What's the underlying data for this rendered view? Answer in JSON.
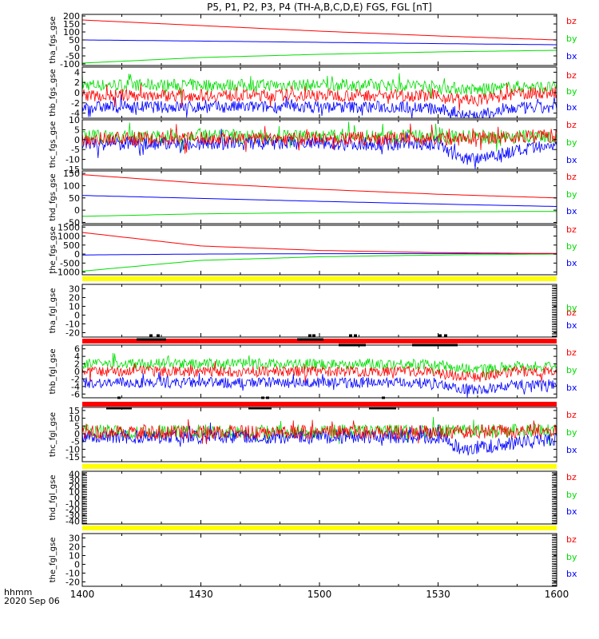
{
  "title": "P5, P1, P2, P3, P4 (TH-A,B,C,D,E) FGS, FGL [nT]",
  "xaxis": {
    "ticks": [
      "1400",
      "1430",
      "1500",
      "1530",
      "1600"
    ],
    "tick_minutes": [
      0,
      30,
      60,
      90,
      120
    ],
    "unit_label": "hhmm",
    "date_label": "2020 Sep 06"
  },
  "colors": {
    "bz": "#ff0000",
    "by": "#00dd00",
    "bx": "#0000ff",
    "bar_yellow": "#ffff00",
    "bar_red": "#ff0000"
  },
  "chart_data": [
    {
      "type": "line",
      "panel": 1,
      "ylabel": "tha_fgs_gse",
      "ylim": [
        -110,
        210
      ],
      "yticks": [
        "200",
        "150",
        "100",
        "50",
        "0",
        "-50",
        "-100"
      ],
      "ytick_values": [
        200,
        150,
        100,
        50,
        0,
        -50,
        -100
      ],
      "legend": [
        "bz",
        "by",
        "bx"
      ],
      "series": [
        {
          "name": "bx",
          "x": [
            0,
            30,
            60,
            90,
            120
          ],
          "y": [
            50,
            43,
            35,
            27,
            20
          ]
        },
        {
          "name": "by",
          "x": [
            0,
            30,
            60,
            90,
            120
          ],
          "y": [
            -95,
            -60,
            -40,
            -25,
            -15
          ]
        },
        {
          "name": "bz",
          "x": [
            0,
            30,
            60,
            90,
            120
          ],
          "y": [
            175,
            140,
            105,
            75,
            50
          ]
        }
      ]
    },
    {
      "type": "line",
      "panel": 2,
      "ylabel": "thb_fgs_gse",
      "ylim": [
        -5,
        5
      ],
      "yticks": [
        "4",
        "2",
        "0",
        "-2",
        "-4"
      ],
      "ytick_values": [
        4,
        2,
        0,
        -2,
        -4
      ],
      "legend": [
        "bz",
        "by",
        "bx"
      ],
      "series": [
        {
          "name": "bx",
          "x": [
            0,
            30,
            60,
            85,
            100,
            110,
            120
          ],
          "y": [
            -2.8,
            -2.8,
            -2.8,
            -2.8,
            -4.5,
            -3,
            -3
          ]
        },
        {
          "name": "by",
          "x": [
            0,
            30,
            60,
            85,
            100,
            110,
            120
          ],
          "y": [
            1.5,
            1.5,
            1.5,
            1.5,
            0.5,
            1.2,
            1.0
          ]
        },
        {
          "name": "bz",
          "x": [
            0,
            30,
            60,
            85,
            100,
            110,
            120
          ],
          "y": [
            -0.5,
            -0.5,
            -0.5,
            -0.5,
            -1.5,
            -0.2,
            0
          ]
        }
      ]
    },
    {
      "type": "line",
      "panel": 3,
      "ylabel": "thc_fgs_gse",
      "ylim": [
        -15,
        10
      ],
      "yticks": [
        "10",
        "5",
        "0",
        "-5",
        "-10",
        "-15"
      ],
      "ytick_values": [
        10,
        5,
        0,
        -5,
        -10,
        -15
      ],
      "legend": [
        "bz",
        "by",
        "bx"
      ],
      "series": [
        {
          "name": "bx",
          "x": [
            0,
            30,
            60,
            90,
            96,
            120
          ],
          "y": [
            -2,
            -2,
            -2,
            -2,
            -10,
            -3
          ]
        },
        {
          "name": "by",
          "x": [
            0,
            30,
            60,
            90,
            120
          ],
          "y": [
            1.5,
            1.5,
            1.5,
            1.5,
            1.5
          ]
        },
        {
          "name": "bz",
          "x": [
            0,
            30,
            60,
            90,
            120
          ],
          "y": [
            0.5,
            0.5,
            0.5,
            0.5,
            2
          ]
        }
      ]
    },
    {
      "type": "line",
      "panel": 4,
      "ylabel": "thd_fgs_gse",
      "ylim": [
        -55,
        160
      ],
      "yticks": [
        "150",
        "100",
        "50",
        "0",
        "-50"
      ],
      "ytick_values": [
        150,
        100,
        50,
        0,
        -50
      ],
      "legend": [
        "bz",
        "by",
        "bx"
      ],
      "series": [
        {
          "name": "bx",
          "x": [
            0,
            30,
            60,
            90,
            120
          ],
          "y": [
            60,
            48,
            36,
            25,
            15
          ]
        },
        {
          "name": "by",
          "x": [
            0,
            30,
            60,
            90,
            120
          ],
          "y": [
            -25,
            -15,
            -10,
            -7,
            -5
          ]
        },
        {
          "name": "bz",
          "x": [
            0,
            30,
            60,
            90,
            120
          ],
          "y": [
            145,
            110,
            85,
            65,
            50
          ]
        }
      ]
    },
    {
      "type": "line",
      "panel": 5,
      "ylabel": "the_fgs_gse",
      "ylim": [
        -1150,
        1600
      ],
      "yticks": [
        "1500",
        "1000",
        "500",
        "0",
        "-500",
        "-1000"
      ],
      "ytick_values": [
        1500,
        1000,
        500,
        0,
        -500,
        -1000
      ],
      "legend": [
        "bz",
        "by",
        "bx"
      ],
      "series": [
        {
          "name": "bx",
          "x": [
            0,
            30,
            60,
            90,
            120
          ],
          "y": [
            -50,
            0,
            20,
            30,
            30
          ]
        },
        {
          "name": "by",
          "x": [
            0,
            30,
            60,
            90,
            120
          ],
          "y": [
            -950,
            -350,
            -150,
            -50,
            0
          ]
        },
        {
          "name": "bz",
          "x": [
            0,
            30,
            60,
            90,
            120
          ],
          "y": [
            1200,
            450,
            200,
            80,
            30
          ]
        }
      ]
    },
    {
      "type": "line",
      "panel": 6,
      "ylabel": "tha_fgl_gse",
      "ylim": [
        -25,
        35
      ],
      "yticks": [
        "30",
        "20",
        "10",
        "0",
        "-10",
        "-20"
      ],
      "ytick_values": [
        30,
        20,
        10,
        0,
        -10,
        -20
      ],
      "legend": [
        "bz",
        "by",
        "bx"
      ],
      "series": []
    },
    {
      "type": "line",
      "panel": 7,
      "ylabel": "thb_fgl_gse",
      "ylim": [
        -7,
        7
      ],
      "yticks": [
        "6",
        "4",
        "2",
        "0",
        "-2",
        "-4",
        "-6"
      ],
      "ytick_values": [
        6,
        4,
        2,
        0,
        -2,
        -4,
        -6
      ],
      "legend": [
        "bz",
        "by",
        "bx"
      ],
      "series": [
        {
          "name": "bx",
          "x": [
            0,
            30,
            60,
            85,
            100,
            110,
            120
          ],
          "y": [
            -3,
            -3,
            -3,
            -3,
            -5,
            -3.5,
            -3.5
          ]
        },
        {
          "name": "by",
          "x": [
            0,
            30,
            60,
            85,
            100,
            110,
            120
          ],
          "y": [
            2,
            2,
            2,
            2,
            0.5,
            1.5,
            1.2
          ]
        },
        {
          "name": "bz",
          "x": [
            0,
            30,
            60,
            85,
            100,
            110,
            120
          ],
          "y": [
            0,
            0,
            0,
            0,
            -1.5,
            0,
            0
          ]
        }
      ]
    },
    {
      "type": "line",
      "panel": 8,
      "ylabel": "thc_fgl_gse",
      "ylim": [
        -18,
        17
      ],
      "yticks": [
        "15",
        "10",
        "5",
        "0",
        "-5",
        "-10",
        "-15"
      ],
      "ytick_values": [
        15,
        10,
        5,
        0,
        -5,
        -10,
        -15
      ],
      "legend": [
        "bz",
        "by",
        "bx"
      ],
      "series": [
        {
          "name": "bx",
          "x": [
            0,
            30,
            60,
            90,
            96,
            120
          ],
          "y": [
            -2,
            -2,
            -2,
            -2,
            -10,
            -3
          ]
        },
        {
          "name": "by",
          "x": [
            0,
            30,
            60,
            90,
            120
          ],
          "y": [
            1.5,
            1.5,
            1.5,
            1.5,
            2
          ]
        },
        {
          "name": "bz",
          "x": [
            0,
            30,
            60,
            90,
            120
          ],
          "y": [
            1,
            1,
            1,
            1,
            2
          ]
        }
      ]
    },
    {
      "type": "line",
      "panel": 9,
      "ylabel": "thd_fgl_gse",
      "ylim": [
        -45,
        45
      ],
      "yticks": [
        "40",
        "30",
        "20",
        "10",
        "0",
        "-10",
        "-20",
        "-30",
        "-40"
      ],
      "ytick_values": [
        40,
        30,
        20,
        10,
        0,
        -10,
        -20,
        -30,
        -40
      ],
      "legend": [
        "bz",
        "by",
        "bx"
      ],
      "series": []
    },
    {
      "type": "line",
      "panel": 10,
      "ylabel": "the_fgl_gse",
      "ylim": [
        -25,
        35
      ],
      "yticks": [
        "30",
        "20",
        "10",
        "0",
        "-10",
        "-20"
      ],
      "ytick_values": [
        30,
        20,
        10,
        0,
        -10,
        -20
      ],
      "legend": [
        "bz",
        "by",
        "bx"
      ],
      "series": []
    }
  ]
}
